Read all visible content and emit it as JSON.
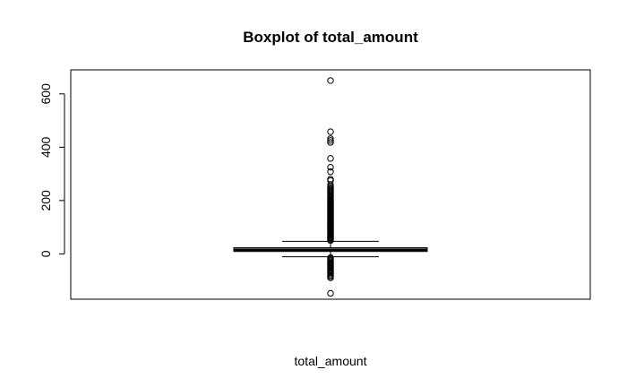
{
  "chart_data": {
    "type": "box",
    "title": "Boxplot of total_amount",
    "xlabel": "total_amount",
    "ylabel": "",
    "ylim": [
      -170,
      690
    ],
    "y_ticks": [
      0,
      200,
      400,
      600
    ],
    "y_tick_labels": [
      "0",
      "200",
      "400",
      "600"
    ],
    "grid": false,
    "box": {
      "whisker_low": -11,
      "q1": 9,
      "median": 15,
      "q3": 23,
      "whisker_high": 47
    },
    "outliers_high": [
      650,
      458,
      432,
      425,
      418,
      358,
      325,
      308,
      280,
      275,
      260,
      253,
      248,
      244,
      240,
      236,
      232,
      228,
      222,
      218,
      214,
      210,
      206,
      203,
      200,
      197,
      194,
      191,
      188,
      185,
      182,
      179,
      176,
      173,
      170,
      167,
      164,
      161,
      158,
      155,
      152,
      149,
      146,
      143,
      140,
      137,
      134,
      131,
      128,
      125,
      122,
      119,
      116,
      113,
      110,
      107,
      104,
      101,
      98,
      95,
      92,
      89,
      86,
      83,
      80,
      77,
      74,
      71,
      68,
      65,
      62,
      59,
      56,
      53,
      50
    ],
    "outliers_low": [
      -14,
      -18,
      -22,
      -26,
      -30,
      -34,
      -38,
      -42,
      -46,
      -50,
      -54,
      -58,
      -62,
      -66,
      -70,
      -75,
      -80,
      -85,
      -90,
      -148
    ]
  }
}
